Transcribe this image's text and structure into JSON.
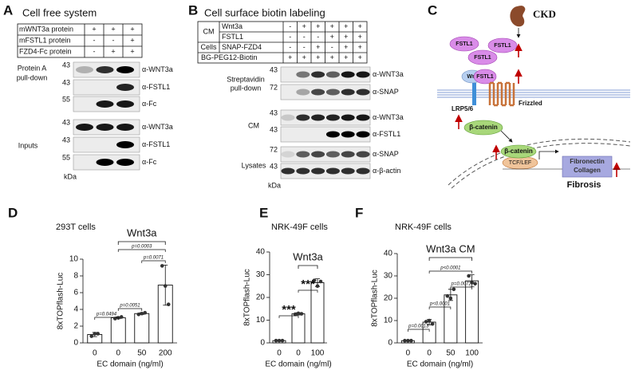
{
  "panel_a": {
    "label": "A",
    "title": "Cell free system",
    "conditions": [
      {
        "name": "mWNT3a protein",
        "marks": [
          "+",
          "+",
          "+"
        ]
      },
      {
        "name": "mFSTL1 protein",
        "marks": [
          "-",
          "-",
          "+"
        ]
      },
      {
        "name": "FZD4-Fc protein",
        "marks": [
          "-",
          "+",
          "+"
        ]
      }
    ],
    "groups": [
      {
        "name": [
          "Protein A",
          "pull-down"
        ],
        "blots": [
          {
            "size": 43,
            "antibody": "α-WNT3a"
          },
          {
            "size": 43,
            "antibody": "α-FSTL1"
          },
          {
            "size": 55,
            "antibody": "α-Fc"
          }
        ]
      },
      {
        "name": [
          "Inputs"
        ],
        "blots": [
          {
            "size": 43,
            "antibody": "α-WNT3a"
          },
          {
            "size": 43,
            "antibody": "α-FSTL1"
          },
          {
            "size": 55,
            "antibody": "α-Fc"
          }
        ]
      }
    ],
    "size_unit": "kDa"
  },
  "panel_b": {
    "label": "B",
    "title": "Cell surface biotin labeling",
    "condition_groups": [
      {
        "name": "CM",
        "rows": [
          {
            "name": "Wnt3a",
            "marks": [
              "-",
              "+",
              "+",
              "+",
              "+",
              "+"
            ]
          },
          {
            "name": "FSTL1",
            "marks": [
              "-",
              "-",
              "-",
              "+",
              "+",
              "+"
            ]
          }
        ]
      },
      {
        "name": "Cells",
        "rows": [
          {
            "name": "SNAP-FZD4",
            "marks": [
              "-",
              "-",
              "+",
              "-",
              "+",
              "+"
            ]
          }
        ]
      }
    ],
    "biotin": {
      "name": "BG-PEG12-Biotin",
      "marks": [
        "+",
        "+",
        "+",
        "+",
        "+",
        "+"
      ]
    },
    "groups": [
      {
        "name": [
          "Streptavidin",
          "pull-down"
        ],
        "blots": [
          {
            "size": 43,
            "antibody": "α-WNT3a"
          },
          {
            "size": 72,
            "antibody": "α-SNAP"
          }
        ]
      },
      {
        "name": [
          "CM"
        ],
        "blots": [
          {
            "size": 43,
            "antibody": "α-WNT3a"
          },
          {
            "size": 43,
            "antibody": "α-FSTL1"
          }
        ]
      },
      {
        "name": [
          "Lysates"
        ],
        "blots": [
          {
            "size": 72,
            "antibody": "α-SNAP"
          },
          {
            "size": 43,
            "antibody": "α-β-actin"
          }
        ]
      }
    ],
    "size_unit": "kDa"
  },
  "panel_c": {
    "label": "C",
    "stimulus": "CKD",
    "secreted": [
      "FSTL1",
      "FSTL1",
      "FSTL1"
    ],
    "ligands": [
      "Wnt",
      "FSTL1"
    ],
    "receptors": [
      "LRP5/6",
      "Frizzled"
    ],
    "cytoplasm": "β-catenin",
    "nucleus": {
      "effector": "β-catenin",
      "factor": "TCF/LEF",
      "targets": [
        "Fibronectin",
        "Collagen"
      ]
    },
    "outcome": "Fibrosis"
  },
  "chart_data": [
    {
      "type": "bar",
      "label": "D",
      "title": "293T cells",
      "group_label": "Wnt3a",
      "categories": [
        "0",
        "0",
        "50",
        "200"
      ],
      "values": [
        1.0,
        3.0,
        3.5,
        6.9
      ],
      "errors": [
        0.25,
        0.12,
        0.1,
        2.4
      ],
      "points": [
        [
          0.8,
          1.1,
          1.1
        ],
        [
          2.9,
          3.0,
          3.1
        ],
        [
          3.4,
          3.5,
          3.6
        ],
        [
          9.2,
          6.8,
          4.6
        ]
      ],
      "color": "#ffffff",
      "ylim": [
        0,
        10
      ],
      "yticks": [
        0,
        2,
        4,
        6,
        8,
        10
      ],
      "xlabel": "EC domain (ng/ml)",
      "ylabel": "8xTOPflash-Luc",
      "annotations": [
        "p=0.0494",
        "p=0.0051",
        "p=0.0071",
        "p=0.0003"
      ]
    },
    {
      "type": "bar",
      "label": "E",
      "title": "NRK-49F cells",
      "group_label": "Wnt3a",
      "categories": [
        "0",
        "0",
        "100"
      ],
      "values": [
        1.0,
        12.8,
        26.5
      ],
      "errors": [
        0.2,
        0.5,
        1.7
      ],
      "points": [
        [
          1.0,
          1.0,
          1.0
        ],
        [
          12.6,
          13.0,
          12.8
        ],
        [
          27.5,
          25.0,
          27.0
        ]
      ],
      "color": "#ffffff",
      "ylim": [
        0,
        40
      ],
      "yticks": [
        0,
        10,
        20,
        30,
        40
      ],
      "xlabel": "EC domain (ng/ml)",
      "ylabel": "8xTOPflash-Luc",
      "annotations": [
        "***",
        "***"
      ]
    },
    {
      "type": "bar",
      "label": "F",
      "title": "NRK-49F cells",
      "group_label": "Wnt3a CM",
      "categories": [
        "0",
        "0",
        "50",
        "100"
      ],
      "values": [
        1.0,
        9.3,
        21.5,
        27.8
      ],
      "errors": [
        0.1,
        1.2,
        2.5,
        2.7
      ],
      "points": [
        [
          1.0,
          1.0,
          1.0
        ],
        [
          9.5,
          10.0,
          8.5
        ],
        [
          21.0,
          20.0,
          24.0
        ],
        [
          30.0,
          27.0,
          26.5
        ]
      ],
      "color": "#ffffff",
      "ylim": [
        0,
        40
      ],
      "yticks": [
        0,
        10,
        20,
        30,
        40
      ],
      "xlabel": "EC domain (ng/ml)",
      "ylabel": "8xTOPflash-Luc",
      "annotations": [
        "p=0.0013",
        "p<0.0001",
        "p=0.0072",
        "p<0.0001"
      ]
    }
  ]
}
